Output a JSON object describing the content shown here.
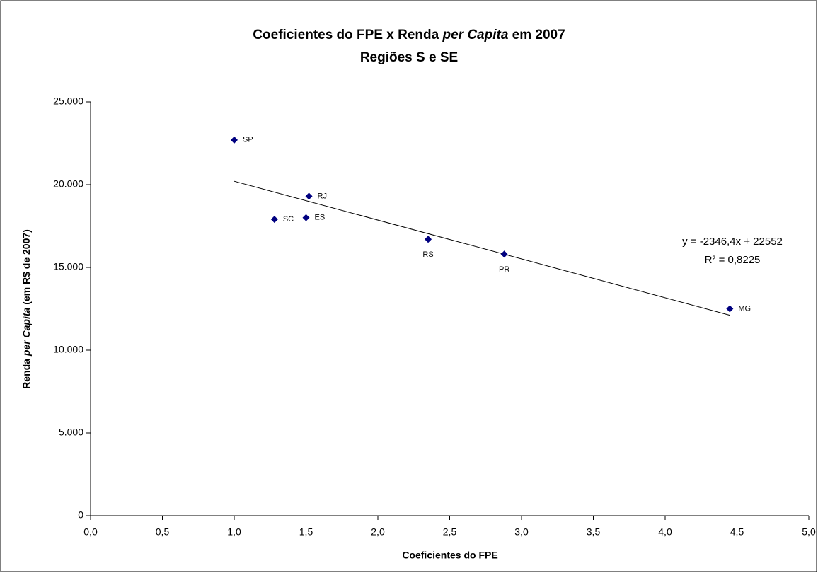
{
  "chart_data": {
    "type": "scatter",
    "title": [
      "Coeficientes do FPE x Renda ",
      "per Capita",
      " em 2007"
    ],
    "subtitle": "Regiões S e SE",
    "x_label": "Coeficientes do FPE",
    "y_label": [
      "Renda ",
      "per Capita",
      " (em R$ de 2007)"
    ],
    "series": [
      {
        "color": "#000080",
        "labels": [
          "SP",
          "RJ",
          "SC",
          "ES",
          "RS",
          "PR",
          "MG"
        ],
        "x": [
          1.0,
          1.52,
          1.28,
          1.5,
          2.35,
          2.88,
          4.45
        ],
        "values": [
          22700,
          19300,
          17900,
          18000,
          16700,
          15800,
          12500
        ]
      }
    ],
    "trendline": {
      "slope": -2346.4,
      "intercept": 22552,
      "equation": "y = -2346,4x + 22552",
      "r2": "R² = 0,8225"
    },
    "xlim": [
      0,
      5
    ],
    "xticks": [
      {
        "value": 0,
        "label": "0,0"
      },
      {
        "value": 0.5,
        "label": "0,5"
      },
      {
        "value": 1,
        "label": "1,0"
      },
      {
        "value": 1.5,
        "label": "1,5"
      },
      {
        "value": 2,
        "label": "2,0"
      },
      {
        "value": 2.5,
        "label": "2,5"
      },
      {
        "value": 3,
        "label": "3,0"
      },
      {
        "value": 3.5,
        "label": "3,5"
      },
      {
        "value": 4,
        "label": "4,0"
      },
      {
        "value": 4.5,
        "label": "4,5"
      },
      {
        "value": 5,
        "label": "5,0"
      }
    ],
    "ylim": [
      0,
      25000
    ],
    "yticks": [
      0,
      {
        "value": 5000,
        "label": "5.000"
      },
      {
        "value": 10000,
        "label": "10.000"
      },
      {
        "value": 15000,
        "label": "15.000"
      },
      {
        "value": 20000,
        "label": "20.000"
      },
      {
        "value": 25000,
        "label": "25.000"
      }
    ],
    "grid": false
  }
}
